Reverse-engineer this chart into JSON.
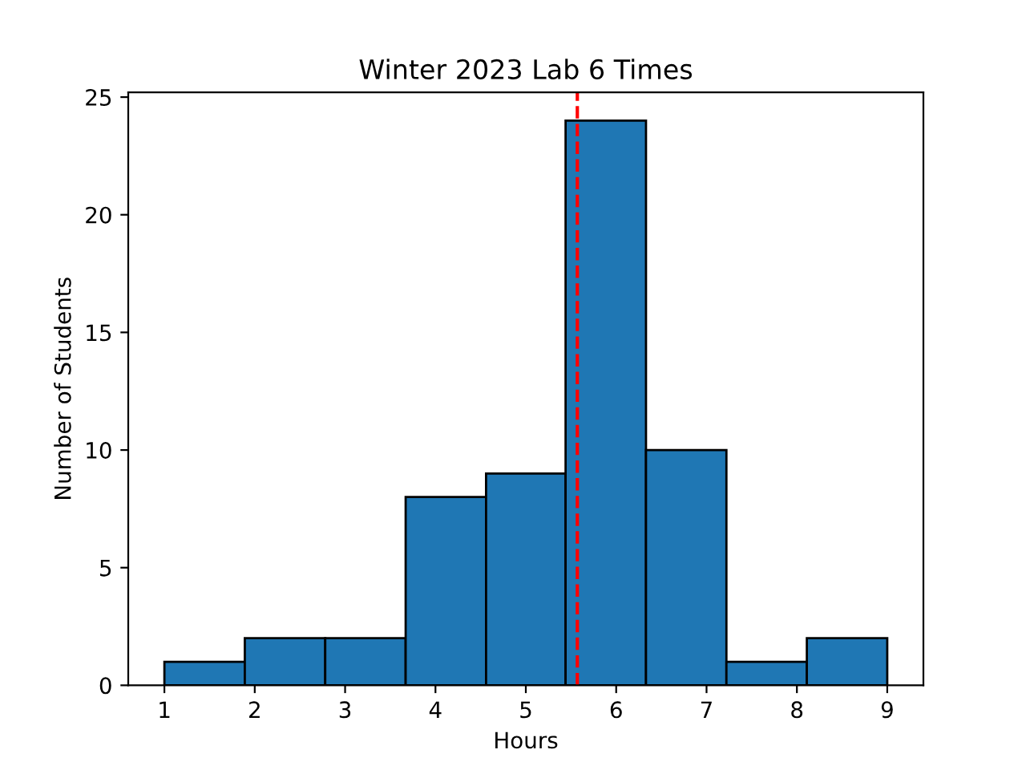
{
  "chart_data": {
    "type": "histogram",
    "title": "Winter 2023 Lab 6 Times",
    "xlabel": "Hours",
    "ylabel": "Number of Students",
    "bins": [
      1,
      1.89,
      2.78,
      3.67,
      4.56,
      5.44,
      6.33,
      7.22,
      8.11,
      9
    ],
    "values": [
      1,
      2,
      2,
      8,
      9,
      24,
      10,
      1,
      2
    ],
    "color": "#1f77b4",
    "xlim": [
      0.6,
      9.4
    ],
    "xticks": [
      1,
      2,
      3,
      4,
      5,
      6,
      7,
      8,
      9
    ],
    "ylim": [
      0,
      25.2
    ],
    "yticks": [
      0,
      5,
      10,
      15,
      20,
      25
    ],
    "ref_lines": [
      {
        "axis": "x",
        "value": 5.57,
        "color": "#ff0000",
        "line_style": "dashed"
      }
    ],
    "grid": false
  }
}
